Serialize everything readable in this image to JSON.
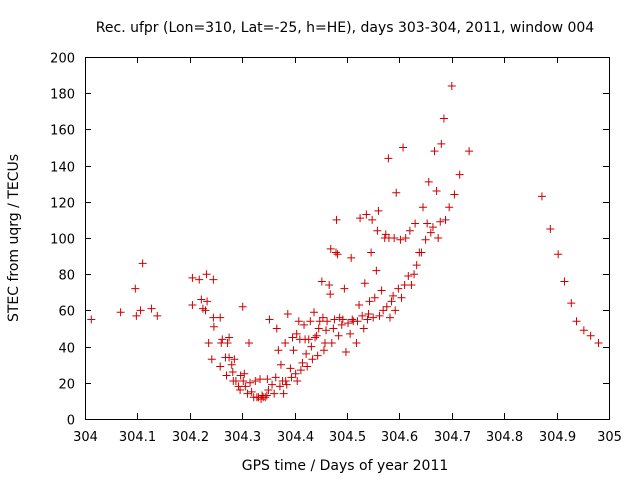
{
  "chart_data": {
    "type": "scatter",
    "title": "Rec. ufpr (Lon=310, Lat=-25, h=HE), days 303-304, 2011, window 004",
    "xlabel": "GPS time / Days of year 2011",
    "ylabel": "STEC from uqrg / TECUs",
    "xlim": [
      304,
      305
    ],
    "ylim": [
      0,
      200
    ],
    "xticks": [
      304,
      304.1,
      304.2,
      304.3,
      304.4,
      304.5,
      304.6,
      304.7,
      304.8,
      304.9,
      305
    ],
    "xtick_labels": [
      "304",
      "304.1",
      "304.2",
      "304.3",
      "304.4",
      "304.5",
      "304.6",
      "304.7",
      "304.8",
      "304.9",
      "305"
    ],
    "yticks": [
      0,
      20,
      40,
      60,
      80,
      100,
      120,
      140,
      160,
      180,
      200
    ],
    "ytick_labels": [
      "0",
      "20",
      "40",
      "60",
      "80",
      "100",
      "120",
      "140",
      "160",
      "180",
      "200"
    ],
    "grid": false,
    "marker": "+",
    "color": "#cc0000",
    "points": [
      [
        304.012,
        55
      ],
      [
        304.068,
        59
      ],
      [
        304.096,
        72
      ],
      [
        304.098,
        57
      ],
      [
        304.106,
        60
      ],
      [
        304.11,
        86
      ],
      [
        304.127,
        61
      ],
      [
        304.138,
        57
      ],
      [
        304.205,
        78
      ],
      [
        304.205,
        63
      ],
      [
        304.218,
        77
      ],
      [
        304.222,
        66
      ],
      [
        304.225,
        61
      ],
      [
        304.23,
        60
      ],
      [
        304.232,
        80
      ],
      [
        304.233,
        65
      ],
      [
        304.236,
        42
      ],
      [
        304.242,
        33
      ],
      [
        304.245,
        77
      ],
      [
        304.245,
        56
      ],
      [
        304.246,
        51
      ],
      [
        304.258,
        56
      ],
      [
        304.258,
        29
      ],
      [
        304.26,
        42
      ],
      [
        304.262,
        44
      ],
      [
        304.268,
        34
      ],
      [
        304.27,
        24
      ],
      [
        304.272,
        42
      ],
      [
        304.275,
        45
      ],
      [
        304.275,
        34
      ],
      [
        304.28,
        30
      ],
      [
        304.282,
        26
      ],
      [
        304.283,
        21
      ],
      [
        304.285,
        33
      ],
      [
        304.288,
        21
      ],
      [
        304.293,
        18
      ],
      [
        304.296,
        16
      ],
      [
        304.297,
        24
      ],
      [
        304.301,
        62
      ],
      [
        304.302,
        21
      ],
      [
        304.304,
        25
      ],
      [
        304.306,
        18
      ],
      [
        304.31,
        14
      ],
      [
        304.313,
        42
      ],
      [
        304.315,
        20
      ],
      [
        304.318,
        15
      ],
      [
        304.322,
        12
      ],
      [
        304.325,
        21
      ],
      [
        304.328,
        12
      ],
      [
        304.331,
        12
      ],
      [
        304.334,
        22
      ],
      [
        304.336,
        11
      ],
      [
        304.338,
        13
      ],
      [
        304.34,
        12
      ],
      [
        304.344,
        12
      ],
      [
        304.347,
        13
      ],
      [
        304.348,
        22
      ],
      [
        304.35,
        16
      ],
      [
        304.352,
        55
      ],
      [
        304.357,
        19
      ],
      [
        304.361,
        14
      ],
      [
        304.364,
        23
      ],
      [
        304.366,
        50
      ],
      [
        304.369,
        38
      ],
      [
        304.372,
        18
      ],
      [
        304.374,
        30
      ],
      [
        304.377,
        21
      ],
      [
        304.379,
        14
      ],
      [
        304.382,
        42
      ],
      [
        304.383,
        21
      ],
      [
        304.385,
        19
      ],
      [
        304.387,
        58
      ],
      [
        304.392,
        28
      ],
      [
        304.394,
        23
      ],
      [
        304.396,
        45
      ],
      [
        304.398,
        38
      ],
      [
        304.402,
        25
      ],
      [
        304.404,
        47
      ],
      [
        304.405,
        21
      ],
      [
        304.408,
        54
      ],
      [
        304.41,
        44
      ],
      [
        304.412,
        27
      ],
      [
        304.415,
        31
      ],
      [
        304.418,
        52
      ],
      [
        304.42,
        44
      ],
      [
        304.422,
        36
      ],
      [
        304.424,
        29
      ],
      [
        304.427,
        44
      ],
      [
        304.43,
        54
      ],
      [
        304.432,
        40
      ],
      [
        304.434,
        33
      ],
      [
        304.437,
        59
      ],
      [
        304.439,
        45
      ],
      [
        304.442,
        46
      ],
      [
        304.444,
        35
      ],
      [
        304.446,
        50
      ],
      [
        304.448,
        54
      ],
      [
        304.452,
        76
      ],
      [
        304.454,
        56
      ],
      [
        304.456,
        38
      ],
      [
        304.458,
        42
      ],
      [
        304.46,
        49
      ],
      [
        304.462,
        54
      ],
      [
        304.466,
        74
      ],
      [
        304.468,
        69
      ],
      [
        304.469,
        94
      ],
      [
        304.471,
        42
      ],
      [
        304.474,
        50
      ],
      [
        304.476,
        55
      ],
      [
        304.479,
        92
      ],
      [
        304.48,
        110
      ],
      [
        304.482,
        91
      ],
      [
        304.484,
        46
      ],
      [
        304.486,
        56
      ],
      [
        304.49,
        52
      ],
      [
        304.492,
        55
      ],
      [
        304.495,
        72
      ],
      [
        304.498,
        37
      ],
      [
        304.502,
        53
      ],
      [
        304.506,
        47
      ],
      [
        304.508,
        89
      ],
      [
        304.51,
        55
      ],
      [
        304.512,
        54
      ],
      [
        304.518,
        42
      ],
      [
        304.52,
        54
      ],
      [
        304.523,
        63
      ],
      [
        304.525,
        111
      ],
      [
        304.529,
        57
      ],
      [
        304.532,
        50
      ],
      [
        304.534,
        75
      ],
      [
        304.537,
        113
      ],
      [
        304.539,
        55
      ],
      [
        304.541,
        58
      ],
      [
        304.543,
        65
      ],
      [
        304.546,
        92
      ],
      [
        304.548,
        110
      ],
      [
        304.55,
        56
      ],
      [
        304.553,
        67
      ],
      [
        304.556,
        82
      ],
      [
        304.558,
        104
      ],
      [
        304.56,
        115
      ],
      [
        304.562,
        57
      ],
      [
        304.566,
        71
      ],
      [
        304.569,
        60
      ],
      [
        304.572,
        100
      ],
      [
        304.574,
        102
      ],
      [
        304.576,
        62
      ],
      [
        304.579,
        144
      ],
      [
        304.58,
        100
      ],
      [
        304.582,
        56
      ],
      [
        304.585,
        65
      ],
      [
        304.588,
        68
      ],
      [
        304.59,
        100
      ],
      [
        304.592,
        60
      ],
      [
        304.594,
        125
      ],
      [
        304.598,
        72
      ],
      [
        304.602,
        99
      ],
      [
        304.604,
        67
      ],
      [
        304.607,
        150
      ],
      [
        304.61,
        74
      ],
      [
        304.612,
        100
      ],
      [
        304.617,
        79
      ],
      [
        304.62,
        104
      ],
      [
        304.623,
        74
      ],
      [
        304.628,
        80
      ],
      [
        304.63,
        108
      ],
      [
        304.633,
        85
      ],
      [
        304.638,
        92
      ],
      [
        304.642,
        92
      ],
      [
        304.645,
        117
      ],
      [
        304.65,
        99
      ],
      [
        304.653,
        108
      ],
      [
        304.656,
        131
      ],
      [
        304.66,
        103
      ],
      [
        304.664,
        106
      ],
      [
        304.667,
        148
      ],
      [
        304.671,
        126
      ],
      [
        304.674,
        100
      ],
      [
        304.678,
        109
      ],
      [
        304.68,
        152
      ],
      [
        304.685,
        166
      ],
      [
        304.688,
        110
      ],
      [
        304.695,
        117
      ],
      [
        304.7,
        184
      ],
      [
        304.705,
        124
      ],
      [
        304.715,
        135
      ],
      [
        304.733,
        148
      ],
      [
        304.872,
        123
      ],
      [
        304.888,
        105
      ],
      [
        304.903,
        91
      ],
      [
        304.915,
        76
      ],
      [
        304.928,
        64
      ],
      [
        304.938,
        54
      ],
      [
        304.952,
        49
      ],
      [
        304.965,
        46
      ],
      [
        304.98,
        42
      ]
    ]
  }
}
